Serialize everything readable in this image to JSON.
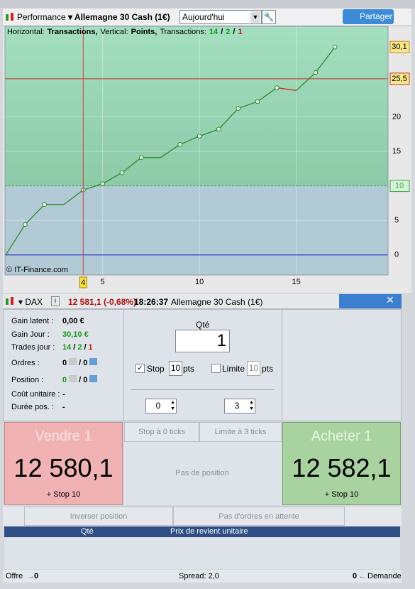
{
  "toolbar": {
    "title": "Performance",
    "instrument": "Allemagne 30 Cash (1€)",
    "period": "Aujourd'hui",
    "share": "Partager"
  },
  "chart_data": {
    "type": "line",
    "header_runs": [
      {
        "text": "Horizontal:"
      },
      {
        "text": "Transactions,",
        "bold": true
      },
      {
        "text": "Vertical:"
      },
      {
        "text": "Points,",
        "bold": true
      },
      {
        "text": "Transactions:"
      },
      {
        "text": "14",
        "bold": true,
        "color": "#1a9a1a"
      },
      {
        "text": "/",
        "bold": true
      },
      {
        "text": "2",
        "bold": true,
        "color": "#1a9a1a"
      },
      {
        "text": "/",
        "bold": true
      },
      {
        "text": "1",
        "bold": true,
        "color": "#cc1111"
      }
    ],
    "x": [
      0,
      1,
      2,
      3,
      4,
      5,
      6,
      7,
      8,
      9,
      10,
      11,
      12,
      13,
      14,
      15,
      16,
      17
    ],
    "values": [
      0,
      4.4,
      7.3,
      7.3,
      9.4,
      10.3,
      11.9,
      14.1,
      14.1,
      16.0,
      17.2,
      18.2,
      21.2,
      22.2,
      24.2,
      23.8,
      26.4,
      30.1
    ],
    "markers": [
      false,
      true,
      true,
      false,
      true,
      true,
      true,
      true,
      false,
      true,
      true,
      true,
      true,
      true,
      true,
      false,
      true,
      true
    ],
    "color": "#2a8a2a",
    "loss_color": "#cc2222",
    "xlim": [
      -0.04,
      19.74
    ],
    "ylim": [
      -2.9,
      33.1
    ],
    "xticks": [
      5,
      10,
      15
    ],
    "yticks": [
      0,
      5,
      15,
      20
    ],
    "reference_lines": [
      {
        "value": 25.5,
        "label": "25,5",
        "color": "#cc3333",
        "style": "solid"
      },
      {
        "value": 10,
        "label": "10",
        "color": "#33aa33",
        "style": "dashed",
        "split_background": true
      }
    ],
    "zero_line_color": "#2233cc",
    "last_value": {
      "value": 30.1,
      "label": "30,1"
    },
    "cursor_x": 4,
    "credit": "© IT-Finance.com"
  },
  "panel": {
    "symbol": "DAX",
    "quote": "12 581,1 (-0,68%)",
    "time": "18:26:37",
    "instrument": "Allemagne 30 Cash (1€)",
    "stats": [
      {
        "label": "Gain latent :",
        "runs": [
          {
            "text": "0,00 €"
          }
        ]
      },
      {
        "label": "Gain Jour :",
        "runs": [
          {
            "text": "30,10 €",
            "color": "#1a9a1a"
          }
        ]
      },
      {
        "label": "Trades jour :",
        "runs": [
          {
            "text": "14",
            "color": "#1a9a1a"
          },
          {
            "text": "/"
          },
          {
            "text": "2",
            "color": "#1a9a1a"
          },
          {
            "text": "/"
          },
          {
            "text": "1",
            "color": "#cc1111"
          }
        ]
      },
      {
        "label": "Ordres :",
        "runs": [
          {
            "text": "0"
          },
          {
            "text": "/ 0"
          }
        ]
      },
      {
        "label": "Position :",
        "runs": [
          {
            "text": "0",
            "color": "#1a9a1a"
          },
          {
            "text": "/ 0"
          }
        ]
      },
      {
        "label": "Coût unitaire :",
        "runs": [
          {
            "text": "-"
          }
        ]
      },
      {
        "label": "Durée pos. :",
        "runs": [
          {
            "text": "-"
          }
        ]
      }
    ],
    "qty_label": "Qté",
    "qty": "1",
    "stop_label": "Stop",
    "stop_value": "10",
    "stop_unit": "pts",
    "limit_label": "Limite",
    "limit_value": "10",
    "limit_unit": "pts",
    "stop_ticks": "0",
    "limit_ticks": "3",
    "stop_button": "Stop à 0 ticks",
    "limit_button": "Limite à 3 ticks",
    "position_status": "Pas de position",
    "sell": {
      "label": "Vendre 1",
      "price": "12 580,1",
      "stop": "+ Stop 10"
    },
    "buy": {
      "label": "Acheter 1",
      "price": "12 582,1",
      "stop": "+ Stop 10"
    },
    "reverse": "Inverser position",
    "pending": "Pas d'ordres en attente",
    "table_headers": [
      "Qté",
      "Prix de revient unitaire"
    ],
    "footer": {
      "bid_label": "Offre",
      "bid": "0",
      "spread": "Spread: 2,0",
      "ask": "0",
      "ask_label": "Demande"
    }
  }
}
